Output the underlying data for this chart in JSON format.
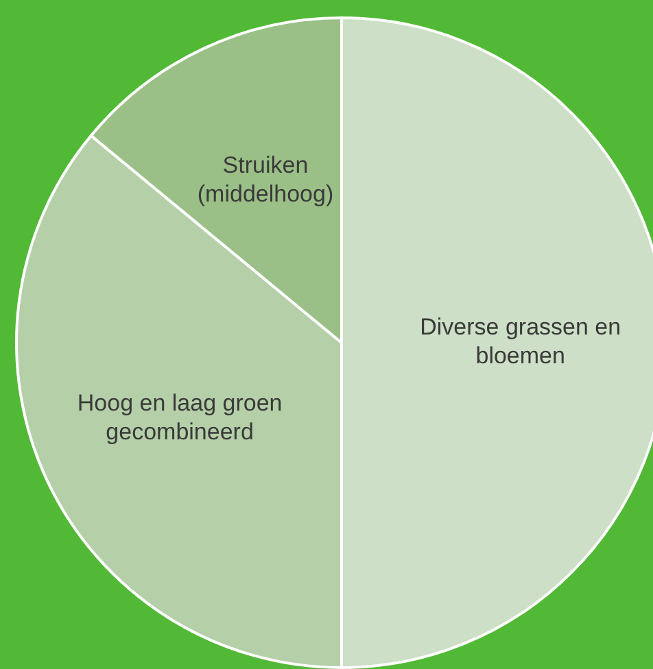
{
  "chart_data": {
    "type": "pie",
    "categories": [
      "Diverse grassen en bloemen",
      "Hoog en laag groen gecombineerd",
      "Struiken (middelhoog)"
    ],
    "values": [
      50,
      36,
      14
    ],
    "colors": [
      "#cddfc6",
      "#b5d0a8",
      "#9bc087"
    ],
    "legend": false
  }
}
